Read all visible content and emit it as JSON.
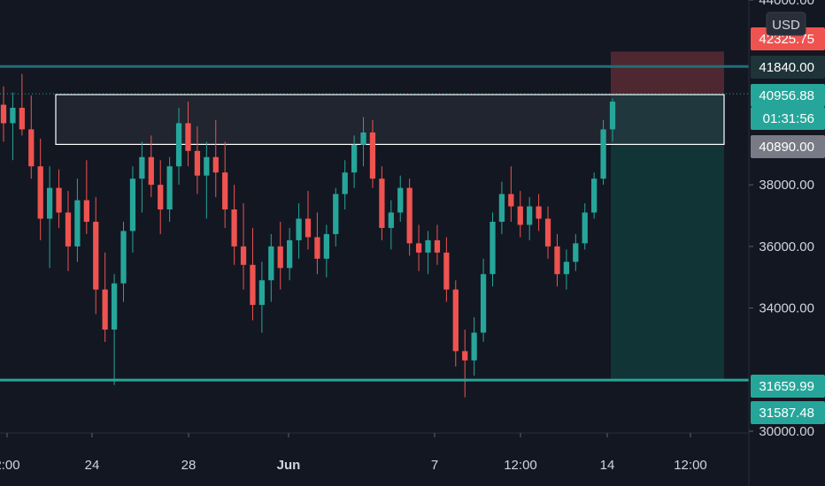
{
  "currency": "USD",
  "colors": {
    "background": "#131722",
    "grid": "#1e2230",
    "up": "#26a69a",
    "down": "#ef5350",
    "axis_text": "#d1d4dc",
    "resistance_line": "#1f6f78",
    "support_line": "#26a69a",
    "stop_zone": "#5a2a33",
    "profit_zone": "#123a3a",
    "range_box": "#3a3e4a"
  },
  "chart_data": {
    "type": "candlestick",
    "title": "",
    "xlabel": "",
    "ylabel": "",
    "ylim": [
      30000,
      44000
    ],
    "y_ticks": [
      "44000.00",
      "38000.00",
      "36000.00",
      "34000.00",
      "30000.00"
    ],
    "x_ticks": [
      "2:00",
      "24",
      "28",
      "Jun",
      "7",
      "12:00",
      "14",
      "12:00"
    ],
    "grid": false,
    "price_tags": [
      {
        "label": "42325.75",
        "kind": "stop"
      },
      {
        "label": "41840.00",
        "kind": "resistance"
      },
      {
        "label": "40956.88",
        "kind": "last"
      },
      {
        "label": "01:31:56",
        "kind": "countdown"
      },
      {
        "label": "40890.00",
        "kind": "box"
      },
      {
        "label": "31659.99",
        "kind": "support"
      },
      {
        "label": "31587.48",
        "kind": "target"
      }
    ],
    "levels": {
      "resistance": 41840.0,
      "support": 31659.99,
      "last_price": 40956.88,
      "box_top": 40956.88,
      "box_bottom": 40890.0,
      "stop": 42325.75,
      "entry": 40956.88,
      "target": 31587.48
    },
    "ohlc_series_approx": [
      [
        40600,
        41200,
        39400,
        40000
      ],
      [
        40000,
        41000,
        38800,
        40500
      ],
      [
        40500,
        41600,
        39600,
        39800
      ],
      [
        39800,
        40900,
        38200,
        38600
      ],
      [
        38600,
        39500,
        36200,
        36900
      ],
      [
        36900,
        38600,
        35300,
        37900
      ],
      [
        37900,
        38500,
        36600,
        37100
      ],
      [
        37100,
        37800,
        35200,
        36000
      ],
      [
        36000,
        38200,
        35500,
        37500
      ],
      [
        37500,
        38800,
        36400,
        36800
      ],
      [
        36800,
        37600,
        33800,
        34600
      ],
      [
        34600,
        35800,
        32900,
        33300
      ],
      [
        33300,
        35100,
        31500,
        34800
      ],
      [
        34800,
        36800,
        34200,
        36500
      ],
      [
        36500,
        38600,
        35800,
        38200
      ],
      [
        38200,
        39400,
        37100,
        38900
      ],
      [
        38900,
        39600,
        37600,
        38000
      ],
      [
        38000,
        38800,
        36400,
        37200
      ],
      [
        37200,
        38900,
        36800,
        38600
      ],
      [
        38600,
        40500,
        38000,
        40000
      ],
      [
        40000,
        40700,
        38600,
        39100
      ],
      [
        39100,
        39900,
        37700,
        38300
      ],
      [
        38300,
        39400,
        36900,
        38900
      ],
      [
        38900,
        40100,
        37600,
        38400
      ],
      [
        38400,
        39400,
        36600,
        37200
      ],
      [
        37200,
        38000,
        35400,
        36000
      ],
      [
        36000,
        37400,
        34600,
        35400
      ],
      [
        35400,
        36600,
        33600,
        34100
      ],
      [
        34100,
        35500,
        33200,
        34900
      ],
      [
        34900,
        36400,
        34200,
        36000
      ],
      [
        36000,
        36800,
        34600,
        35300
      ],
      [
        35300,
        36600,
        34900,
        36200
      ],
      [
        36200,
        37400,
        35600,
        36900
      ],
      [
        36900,
        37800,
        35900,
        36300
      ],
      [
        36300,
        37100,
        35100,
        35600
      ],
      [
        35600,
        36700,
        35000,
        36400
      ],
      [
        36400,
        37900,
        36000,
        37700
      ],
      [
        37700,
        38800,
        37200,
        38400
      ],
      [
        38400,
        39600,
        37900,
        39300
      ],
      [
        39300,
        40200,
        38600,
        39700
      ],
      [
        39700,
        40100,
        37900,
        38200
      ],
      [
        38200,
        38600,
        36200,
        36600
      ],
      [
        36600,
        37500,
        35900,
        37100
      ],
      [
        37100,
        38300,
        36800,
        37900
      ],
      [
        37900,
        38200,
        35700,
        36100
      ],
      [
        36100,
        36700,
        35200,
        35800
      ],
      [
        35800,
        36500,
        35100,
        36200
      ],
      [
        36200,
        36700,
        35400,
        35800
      ],
      [
        35800,
        36300,
        34200,
        34600
      ],
      [
        34600,
        34900,
        32100,
        32600
      ],
      [
        32600,
        33300,
        31100,
        32300
      ],
      [
        32300,
        33700,
        31800,
        33200
      ],
      [
        33200,
        35600,
        32900,
        35100
      ],
      [
        35100,
        37100,
        34700,
        36800
      ],
      [
        36800,
        38100,
        36400,
        37700
      ],
      [
        37700,
        38600,
        36800,
        37300
      ],
      [
        37300,
        37800,
        36300,
        36700
      ],
      [
        36700,
        37600,
        36200,
        37300
      ],
      [
        37300,
        37700,
        36500,
        36900
      ],
      [
        36900,
        37300,
        35600,
        36000
      ],
      [
        36000,
        36400,
        34700,
        35100
      ],
      [
        35100,
        35900,
        34600,
        35500
      ],
      [
        35500,
        36400,
        35200,
        36100
      ],
      [
        36100,
        37400,
        35900,
        37100
      ],
      [
        37100,
        38400,
        36900,
        38200
      ],
      [
        38200,
        40100,
        38000,
        39800
      ],
      [
        39800,
        40800,
        39400,
        40700
      ]
    ]
  }
}
